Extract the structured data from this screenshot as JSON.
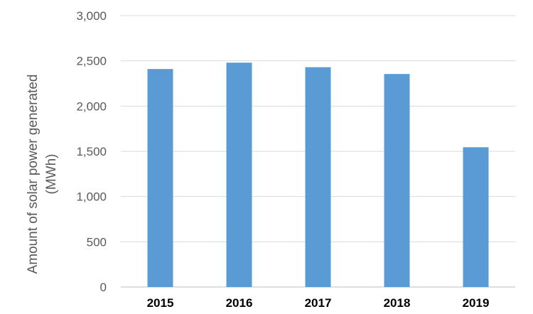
{
  "chart_data": {
    "type": "bar",
    "categories": [
      "2015",
      "2016",
      "2017",
      "2018",
      "2019"
    ],
    "values": [
      2410,
      2480,
      2430,
      2355,
      1545
    ],
    "ylabel_line1": "Amount of solar power generated",
    "ylabel_line2": "(MWh)",
    "ylim": [
      0,
      3000
    ],
    "yticks": [
      "0",
      "500",
      "1,000",
      "1,500",
      "2,000",
      "2,500",
      "3,000"
    ],
    "ytick_values": [
      0,
      500,
      1000,
      1500,
      2000,
      2500,
      3000
    ],
    "grid": true,
    "bar_color": "#5B9BD5",
    "grid_color": "#D9D9D9",
    "axis_color": "#BFBFBF",
    "tick_label_color": "#595959",
    "category_label_color": "#000000"
  }
}
